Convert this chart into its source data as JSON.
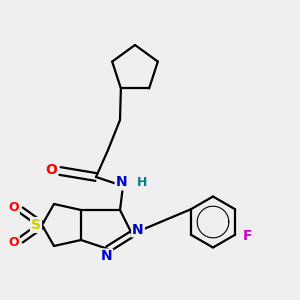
{
  "bg_color": "#efefef",
  "bond_color": "#000000",
  "atom_colors": {
    "O": "#ff0000",
    "N": "#0000cd",
    "S": "#cccc00",
    "F": "#cc00cc",
    "H": "#008080",
    "C": "#000000"
  },
  "line_width": 1.6,
  "figsize": [
    3.0,
    3.0
  ],
  "dpi": 100
}
